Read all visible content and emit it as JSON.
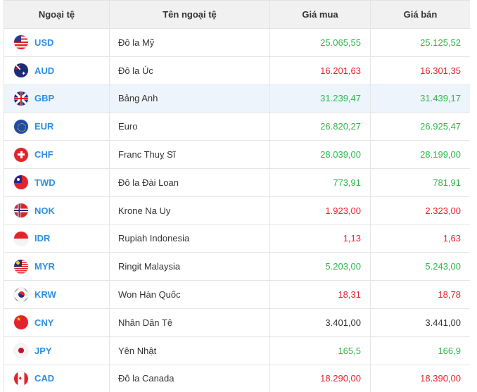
{
  "columns": {
    "code": "Ngoại tệ",
    "name": "Tên ngoại tệ",
    "buy": "Giá mua",
    "sell": "Giá bán"
  },
  "rows": [
    {
      "code": "USD",
      "name": "Đô la Mỹ",
      "buy": "25.065,55",
      "sell": "25.125,52",
      "buy_trend": "up",
      "sell_trend": "up",
      "flag": "usa-flag-icon"
    },
    {
      "code": "AUD",
      "name": "Đô la Úc",
      "buy": "16.201,63",
      "sell": "16.301,35",
      "buy_trend": "down",
      "sell_trend": "down",
      "flag": "australia-flag-icon"
    },
    {
      "code": "GBP",
      "name": "Bảng Anh",
      "buy": "31.239,47",
      "sell": "31.439,17",
      "buy_trend": "up",
      "sell_trend": "up",
      "flag": "uk-flag-icon"
    },
    {
      "code": "EUR",
      "name": "Euro",
      "buy": "26.820,27",
      "sell": "26.925,47",
      "buy_trend": "up",
      "sell_trend": "up",
      "flag": "eu-flag-icon"
    },
    {
      "code": "CHF",
      "name": "Franc Thuỵ Sĩ",
      "buy": "28.039,00",
      "sell": "28.199,00",
      "buy_trend": "up",
      "sell_trend": "up",
      "flag": "switzerland-flag-icon"
    },
    {
      "code": "TWD",
      "name": "Đô la Đài Loan",
      "buy": "773,91",
      "sell": "781,91",
      "buy_trend": "up",
      "sell_trend": "up",
      "flag": "taiwan-flag-icon"
    },
    {
      "code": "NOK",
      "name": "Krone Na Uy",
      "buy": "1.923,00",
      "sell": "2.323,00",
      "buy_trend": "down",
      "sell_trend": "down",
      "flag": "norway-flag-icon"
    },
    {
      "code": "IDR",
      "name": "Rupiah Indonesia",
      "buy": "1,13",
      "sell": "1,63",
      "buy_trend": "down",
      "sell_trend": "down",
      "flag": "indonesia-flag-icon"
    },
    {
      "code": "MYR",
      "name": "Ringit Malaysia",
      "buy": "5.203,00",
      "sell": "5.243,00",
      "buy_trend": "up",
      "sell_trend": "up",
      "flag": "malaysia-flag-icon"
    },
    {
      "code": "KRW",
      "name": "Won Hàn Quốc",
      "buy": "18,31",
      "sell": "18,78",
      "buy_trend": "down",
      "sell_trend": "down",
      "flag": "korea-flag-icon"
    },
    {
      "code": "CNY",
      "name": "Nhân Dân Tệ",
      "buy": "3.401,00",
      "sell": "3.441,00",
      "buy_trend": "flat",
      "sell_trend": "flat",
      "flag": "china-flag-icon"
    },
    {
      "code": "JPY",
      "name": "Yên Nhật",
      "buy": "165,5",
      "sell": "166,9",
      "buy_trend": "up",
      "sell_trend": "up",
      "flag": "japan-flag-icon"
    },
    {
      "code": "CAD",
      "name": "Đô la Canada",
      "buy": "18.290,00",
      "sell": "18.390,00",
      "buy_trend": "down",
      "sell_trend": "down",
      "flag": "canada-flag-icon"
    }
  ],
  "colors": {
    "up": "#2eb84c",
    "down": "#e8232f",
    "code_link": "#2f8ee0",
    "header_bg": "#f1f1f1",
    "row_highlight": "#eef4fb"
  },
  "highlighted_row": "GBP"
}
